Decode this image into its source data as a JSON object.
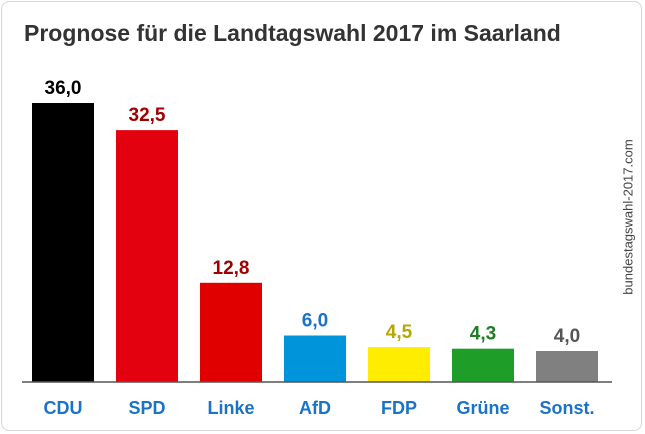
{
  "source": "bundestagswahl-2017.com",
  "chart_data": {
    "type": "bar",
    "title": "Prognose für die Landtagswahl 2017 im Saarland",
    "categories": [
      "CDU",
      "SPD",
      "Linke",
      "AfD",
      "FDP",
      "Grüne",
      "Sonst."
    ],
    "values": [
      36.0,
      32.5,
      12.8,
      6.0,
      4.5,
      4.3,
      4.0
    ],
    "value_labels": [
      "36,0",
      "32,5",
      "12,8",
      "6,0",
      "4,5",
      "4,3",
      "4,0"
    ],
    "bar_colors": [
      "#000000",
      "#e3000f",
      "#e00000",
      "#0095db",
      "#ffed00",
      "#1e9e29",
      "#808080"
    ],
    "label_colors": [
      "#000000",
      "#a00000",
      "#a00000",
      "#1a73c7",
      "#b8a600",
      "#1e7e22",
      "#555555"
    ],
    "category_label_color": "#1a73c7",
    "ylim": [
      0,
      36
    ],
    "grid": false,
    "legend": "none"
  }
}
